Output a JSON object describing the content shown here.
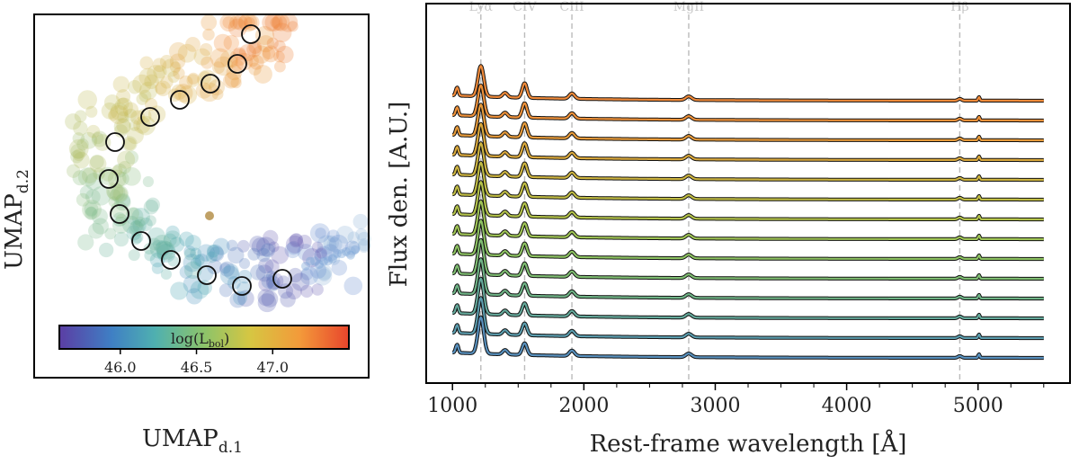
{
  "left_panel": {
    "xlabel": "UMAP",
    "xlabel_sub": "d.1",
    "ylabel": "UMAP",
    "ylabel_sub": "d.2",
    "colorbar": {
      "label": "log(L",
      "label_sub": "bol",
      "label_close": ")",
      "ticks": [
        "46.0",
        "46.5",
        "47.0"
      ],
      "colors": [
        "#5b3ea4",
        "#3f7fc4",
        "#4fb0b0",
        "#8cc36a",
        "#d6c642",
        "#f39a3a",
        "#e8452c"
      ]
    }
  },
  "right_panel": {
    "xlabel": "Rest-frame wavelength [Å]",
    "ylabel": "Flux den. [A.U.]",
    "xticks": [
      "1000",
      "2000",
      "3000",
      "4000",
      "5000"
    ],
    "lines": [
      "Lyα",
      "CIV",
      "CIII",
      "MgII",
      "Hβ"
    ]
  },
  "chart_data": [
    {
      "type": "scatter",
      "title": "",
      "xlabel": "UMAP d.1",
      "ylabel": "UMAP d.2",
      "color_variable": "log(L_bol)",
      "colorbar_range": [
        45.6,
        47.5
      ],
      "colorbar_ticks": [
        46.0,
        46.5,
        47.0
      ],
      "highlighted_points_count": 14,
      "description_points": "dense cloud of sources colored by log(L_bol) forming a C-shaped manifold; 14 circled sample positions along the curve"
    },
    {
      "type": "line",
      "title": "",
      "xlabel": "Rest-frame wavelength [Å]",
      "ylabel": "Flux den. [A.U.]",
      "xlim": [
        800,
        5700
      ],
      "xticks": [
        1000,
        2000,
        3000,
        4000,
        5000
      ],
      "series_count": 14,
      "x_range_of_spectra": [
        1000,
        5500
      ],
      "emission_lines": [
        {
          "name": "Lyα",
          "wavelength": 1216
        },
        {
          "name": "CIV",
          "wavelength": 1549
        },
        {
          "name": "CIII",
          "wavelength": 1909
        },
        {
          "name": "MgII",
          "wavelength": 2798
        },
        {
          "name": "Hβ",
          "wavelength": 4861
        }
      ],
      "series_colors": [
        "#f08a3a",
        "#ee913a",
        "#e69a3a",
        "#d9a83c",
        "#cdb440",
        "#c0bc44",
        "#b3c24a",
        "#9fc455",
        "#8dc262",
        "#7fbd72",
        "#6fb386",
        "#64a89a",
        "#5b9cad",
        "#5890bd"
      ]
    }
  ]
}
